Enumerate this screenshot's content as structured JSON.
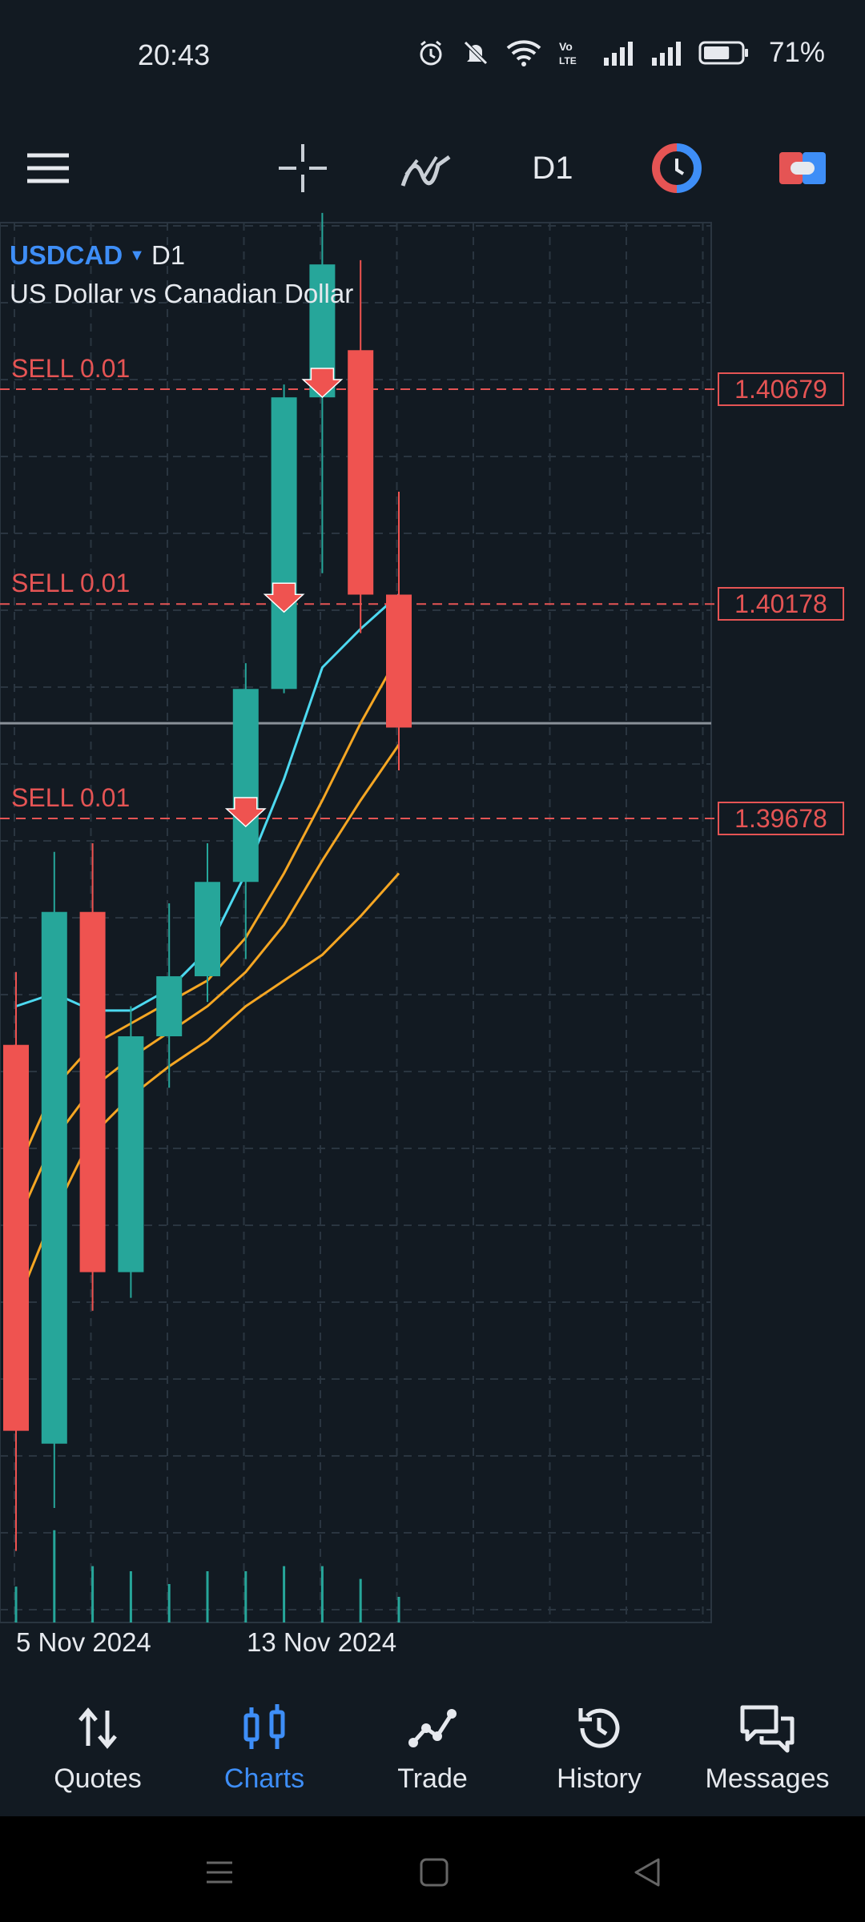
{
  "status_bar": {
    "time": "20:43",
    "battery_percent": "71%",
    "battery_level": 0.71,
    "icons": [
      "alarm-icon",
      "mute-icon",
      "wifi-icon",
      "volte-icon",
      "signal-icon",
      "signal-icon",
      "battery-icon"
    ]
  },
  "toolbar": {
    "timeframe": "D1",
    "icons": [
      "menu-icon",
      "crosshair-icon",
      "indicators-icon",
      "one-click-trading-icon",
      "trade-icon"
    ],
    "colors": {
      "accent_blue": "#3e8ef7",
      "accent_red": "#e55454"
    }
  },
  "chart": {
    "symbol": "USDCAD",
    "timeframe": "D1",
    "description": "US Dollar vs Canadian Dollar",
    "sell_orders": [
      {
        "label": "SELL 0.01",
        "price": "1.40679"
      },
      {
        "label": "SELL 0.01",
        "price": "1.40178"
      },
      {
        "label": "SELL 0.01",
        "price": "1.39678"
      }
    ],
    "date_labels": [
      "5 Nov 2024",
      "13 Nov 2024"
    ],
    "colors": {
      "bull": "#26a69a",
      "bear": "#ef5350",
      "ma_fast": "#4dd9f0",
      "ma_slow": "#f5a623",
      "background": "#121a22",
      "grid": "#2a3540"
    }
  },
  "chart_data": {
    "type": "candlestick",
    "symbol": "USDCAD",
    "timeframe": "D1",
    "price_range": [
      1.379,
      1.412
    ],
    "candles": [
      {
        "open": 1.3915,
        "high": 1.3932,
        "close": 1.3825,
        "low": 1.3797
      },
      {
        "open": 1.3822,
        "high": 1.396,
        "close": 1.3946,
        "low": 1.3807
      },
      {
        "open": 1.3946,
        "high": 1.3962,
        "close": 1.3862,
        "low": 1.3853
      },
      {
        "open": 1.3862,
        "high": 1.3924,
        "close": 1.3917,
        "low": 1.3856
      },
      {
        "open": 1.3917,
        "high": 1.3948,
        "close": 1.3931,
        "low": 1.3905
      },
      {
        "open": 1.3931,
        "high": 1.3962,
        "close": 1.3953,
        "low": 1.3925
      },
      {
        "open": 1.3953,
        "high": 1.4004,
        "close": 1.3998,
        "low": 1.3935
      },
      {
        "open": 1.3998,
        "high": 1.4069,
        "close": 1.4066,
        "low": 1.3997
      },
      {
        "open": 1.4066,
        "high": 1.4109,
        "close": 1.4097,
        "low": 1.4025
      },
      {
        "open": 1.4077,
        "high": 1.4098,
        "close": 1.402,
        "low": 1.4011
      },
      {
        "open": 1.402,
        "high": 1.4044,
        "close": 1.3989,
        "low": 1.3979
      }
    ],
    "volumes": [
      14,
      36,
      22,
      20,
      15,
      20,
      20,
      22,
      22,
      17,
      10
    ],
    "current_price": 1.399,
    "sell_levels": [
      1.40679,
      1.40178,
      1.39678
    ],
    "moving_averages": [
      {
        "color": "#4dd9f0",
        "values": [
          1.3924,
          1.3927,
          1.3923,
          1.3923,
          1.3928,
          1.3937,
          1.3955,
          1.3977,
          1.4003,
          1.4012,
          1.402
        ]
      },
      {
        "color": "#f5a623",
        "values": [
          1.3885,
          1.3905,
          1.3915,
          1.392,
          1.3925,
          1.393,
          1.394,
          1.3955,
          1.3972,
          1.399,
          1.4006
        ]
      },
      {
        "color": "#f5a623",
        "values": [
          1.3873,
          1.3893,
          1.3905,
          1.3912,
          1.3918,
          1.3924,
          1.3932,
          1.3943,
          1.3958,
          1.3972,
          1.3985
        ]
      },
      {
        "color": "#f5a623",
        "values": [
          1.3854,
          1.3876,
          1.3894,
          1.3903,
          1.391,
          1.3916,
          1.3924,
          1.393,
          1.3936,
          1.3945,
          1.3955
        ]
      }
    ],
    "x_labels": [
      "5 Nov 2024",
      "13 Nov 2024"
    ],
    "grid": true
  },
  "bottom_nav": {
    "items": [
      {
        "label": "Quotes",
        "icon": "quotes-arrows-icon",
        "active": false
      },
      {
        "label": "Charts",
        "icon": "charts-candles-icon",
        "active": true
      },
      {
        "label": "Trade",
        "icon": "trade-line-icon",
        "active": false
      },
      {
        "label": "History",
        "icon": "history-clock-icon",
        "active": false
      },
      {
        "label": "Messages",
        "icon": "messages-bubbles-icon",
        "active": false
      }
    ]
  },
  "system_nav": {
    "icons": [
      "recent-apps-icon",
      "home-icon",
      "back-icon"
    ]
  }
}
